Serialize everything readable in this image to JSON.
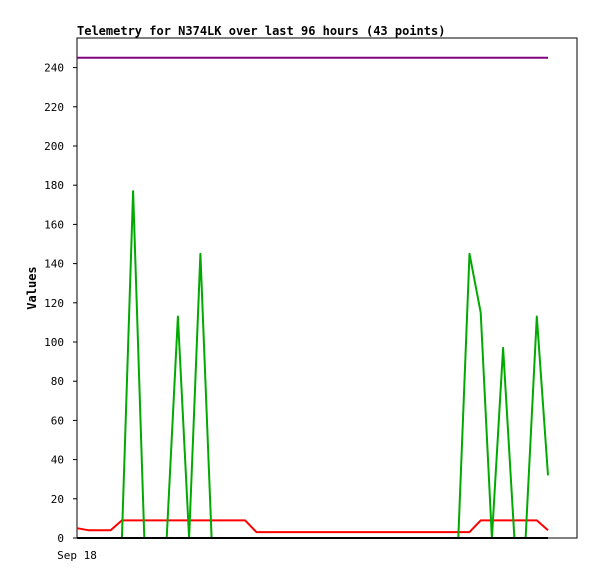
{
  "chart_data": {
    "type": "line",
    "title": "Telemetry for N374LK over last 96 hours (43 points)",
    "ylabel": "Values",
    "xlabel": "",
    "ylim": [
      0,
      250
    ],
    "yticks": [
      0,
      20,
      40,
      60,
      80,
      100,
      120,
      140,
      160,
      180,
      200,
      220,
      240
    ],
    "x_tick_labels": [
      "Sep 18"
    ],
    "grid": false,
    "x": [
      0,
      1,
      2,
      3,
      4,
      5,
      6,
      7,
      8,
      9,
      10,
      11,
      12,
      13,
      14,
      15,
      16,
      17,
      18,
      19,
      20,
      21,
      22,
      23,
      24,
      25,
      26,
      27,
      28,
      29,
      30,
      31,
      32,
      33,
      34,
      35,
      36,
      37,
      38,
      39,
      40,
      41,
      42
    ],
    "series": [
      {
        "color": "#800080",
        "values": [
          245,
          245,
          245,
          245,
          245,
          245,
          245,
          245,
          245,
          245,
          245,
          245,
          245,
          245,
          245,
          245,
          245,
          245,
          245,
          245,
          245,
          245,
          245,
          245,
          245,
          245,
          245,
          245,
          245,
          245,
          245,
          245,
          245,
          245,
          245,
          245,
          245,
          245,
          245,
          245,
          245,
          245,
          245
        ]
      },
      {
        "color": "#ff0000",
        "values": [
          5,
          4,
          4,
          4,
          9,
          9,
          9,
          9,
          9,
          9,
          9,
          9,
          9,
          9,
          9,
          9,
          3,
          3,
          3,
          3,
          3,
          3,
          3,
          3,
          3,
          3,
          3,
          3,
          3,
          3,
          3,
          3,
          3,
          3,
          3,
          3,
          9,
          9,
          9,
          9,
          9,
          9,
          4
        ]
      },
      {
        "color": "#00aa00",
        "values": [
          0,
          0,
          0,
          0,
          0,
          177,
          0,
          0,
          0,
          113,
          0,
          145,
          0,
          0,
          0,
          0,
          0,
          0,
          0,
          0,
          0,
          0,
          0,
          0,
          0,
          0,
          0,
          0,
          0,
          0,
          0,
          0,
          0,
          0,
          0,
          145,
          115,
          0,
          97,
          0,
          0,
          113,
          32
        ]
      },
      {
        "color": "#000000",
        "values": [
          0,
          0,
          0,
          0,
          0,
          0,
          0,
          0,
          0,
          0,
          0,
          0,
          0,
          0,
          0,
          0,
          0,
          0,
          0,
          0,
          0,
          0,
          0,
          0,
          0,
          0,
          0,
          0,
          0,
          0,
          0,
          0,
          0,
          0,
          0,
          0,
          0,
          0,
          0,
          0,
          0,
          0,
          0
        ]
      }
    ]
  }
}
